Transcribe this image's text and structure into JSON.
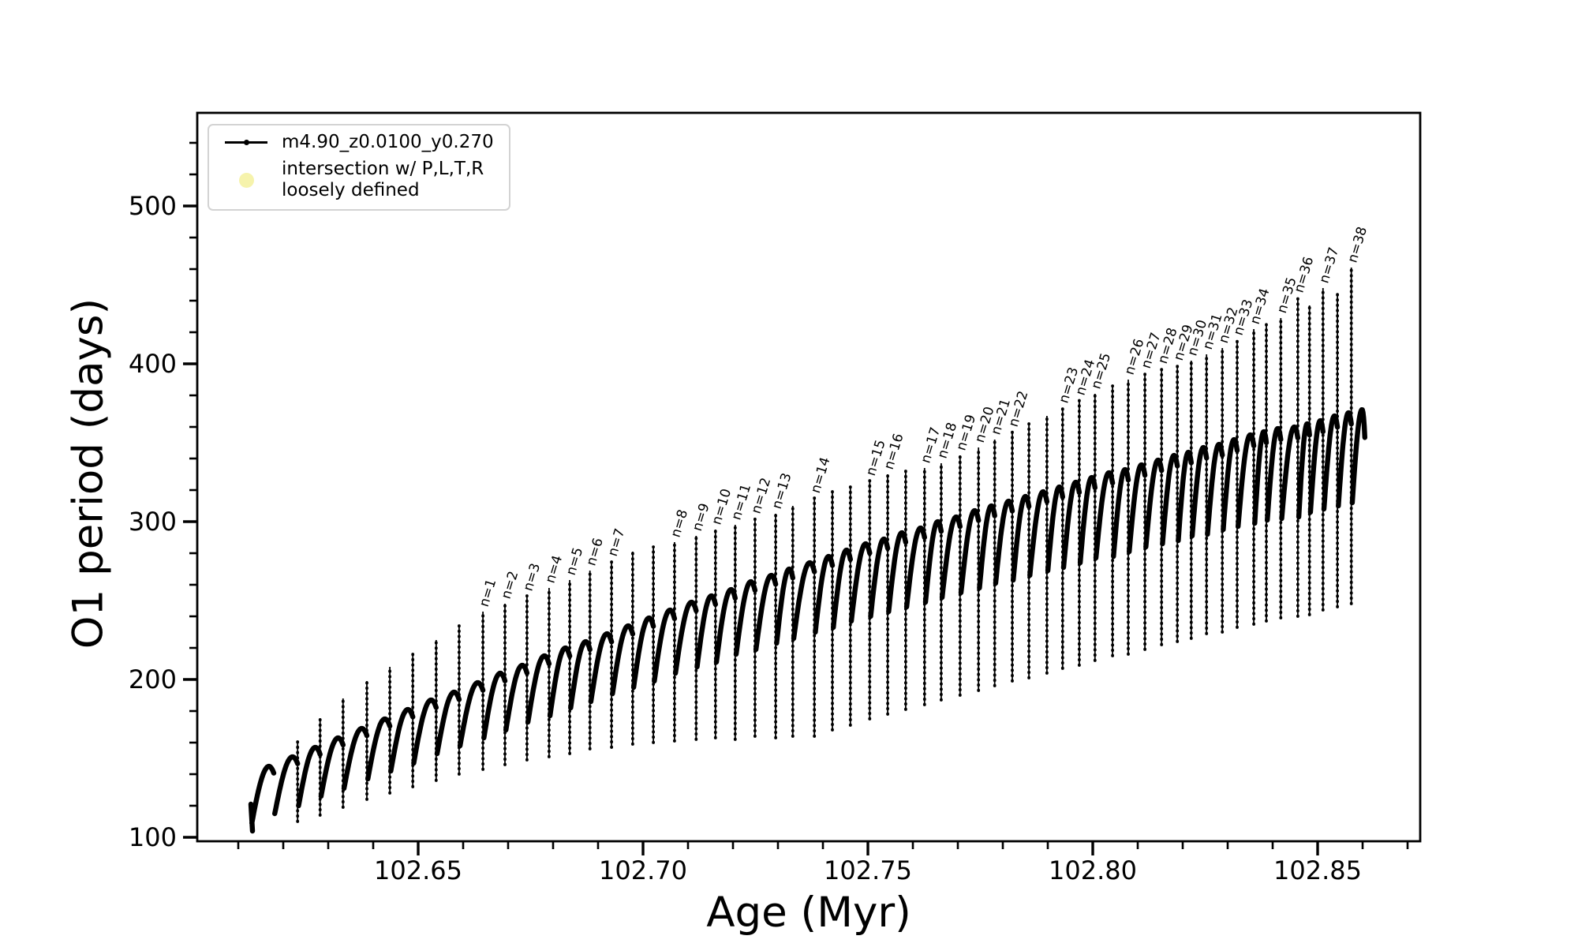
{
  "chart_data": {
    "type": "line",
    "title": "",
    "xlabel": "Age (Myr)",
    "ylabel": "O1 period (days)",
    "xlim": [
      102.601,
      102.873
    ],
    "ylim": [
      97.5,
      559
    ],
    "grid": false,
    "x_major_ticks": [
      102.65,
      102.7,
      102.75,
      102.8,
      102.85
    ],
    "x_major_tick_labels": [
      "102.65",
      "102.70",
      "102.75",
      "102.80",
      "102.85"
    ],
    "x_minor_tick_step": 0.01,
    "y_major_ticks": [
      100,
      200,
      300,
      400,
      500
    ],
    "y_major_tick_labels": [
      "100",
      "200",
      "300",
      "400",
      "500"
    ],
    "y_minor_tick_step": 20,
    "series_color": "#000000",
    "legend": {
      "position": "upper-left",
      "entries": [
        {
          "label": "m4.90_z0.0100_y0.270",
          "marker": "line-with-dot",
          "color": "#000000"
        },
        {
          "label": "intersection w/ P,L,T,R\nloosely defined",
          "marker": "circle",
          "color": "#f6f3ac"
        }
      ]
    },
    "annotation_prefix": "n=",
    "teeth_columns": [
      "age_myr",
      "trough_days",
      "arch_top_days",
      "spike_top_days",
      "spike_bottom_days",
      "label"
    ],
    "teeth": [
      [
        102.6128,
        104,
        139,
        null,
        null,
        null
      ],
      [
        102.6179,
        109,
        145,
        null,
        null,
        null
      ],
      [
        102.6232,
        115,
        151,
        161,
        110,
        null
      ],
      [
        102.6282,
        120,
        157,
        175,
        114,
        null
      ],
      [
        102.6333,
        126,
        163,
        188,
        119,
        null
      ],
      [
        102.6386,
        131,
        169,
        199,
        124,
        null
      ],
      [
        102.6437,
        137,
        175,
        208,
        128,
        null
      ],
      [
        102.6488,
        142,
        181,
        216,
        132,
        null
      ],
      [
        102.654,
        147,
        187,
        225,
        136,
        null
      ],
      [
        102.6591,
        153,
        192,
        234,
        140,
        null
      ],
      [
        102.6644,
        158,
        198,
        243,
        143,
        "n=1"
      ],
      [
        102.6693,
        163,
        204,
        248,
        146,
        "n=2"
      ],
      [
        102.6742,
        168,
        209,
        253,
        149,
        "n=3"
      ],
      [
        102.6791,
        173,
        215,
        258,
        151,
        "n=4"
      ],
      [
        102.6837,
        177,
        220,
        263,
        153,
        "n=5"
      ],
      [
        102.6882,
        182,
        224,
        269,
        156,
        "n=6"
      ],
      [
        102.693,
        186,
        229,
        275,
        157,
        "n=7"
      ],
      [
        102.6977,
        191,
        234,
        281,
        159,
        null
      ],
      [
        102.7023,
        195,
        239,
        284,
        160,
        null
      ],
      [
        102.707,
        199,
        244,
        287,
        161,
        "n=8"
      ],
      [
        102.7118,
        204,
        249,
        291,
        162,
        "n=9"
      ],
      [
        102.7161,
        208,
        253,
        295,
        163,
        "n=10"
      ],
      [
        102.7205,
        211,
        257,
        298,
        162,
        "n=11"
      ],
      [
        102.7249,
        216,
        262,
        302,
        164,
        "n=12"
      ],
      [
        102.7295,
        219,
        266,
        305,
        163,
        "n=13"
      ],
      [
        102.7333,
        223,
        270,
        310,
        164,
        null
      ],
      [
        102.7381,
        226,
        274,
        315,
        164,
        "n=14"
      ],
      [
        102.7421,
        230,
        278,
        319,
        168,
        null
      ],
      [
        102.7461,
        233,
        282,
        322,
        171,
        null
      ],
      [
        102.7504,
        237,
        286,
        326,
        175,
        "n=15"
      ],
      [
        102.7544,
        240,
        289,
        330,
        178,
        "n=16"
      ],
      [
        102.7584,
        243,
        293,
        332,
        181,
        null
      ],
      [
        102.7626,
        246,
        296,
        334,
        184,
        "n=17"
      ],
      [
        102.7663,
        249,
        300,
        337,
        187,
        "n=18"
      ],
      [
        102.7705,
        252,
        303,
        342,
        190,
        "n=19"
      ],
      [
        102.7746,
        255,
        307,
        347,
        193,
        "n=20"
      ],
      [
        102.7782,
        258,
        310,
        352,
        196,
        "n=21"
      ],
      [
        102.7821,
        261,
        313,
        357,
        199,
        "n=22"
      ],
      [
        102.7858,
        263,
        316,
        362,
        201,
        null
      ],
      [
        102.7898,
        266,
        319,
        367,
        204,
        null
      ],
      [
        102.7933,
        269,
        322,
        372,
        207,
        "n=23"
      ],
      [
        102.797,
        271,
        325,
        377,
        209,
        "n=24"
      ],
      [
        102.8005,
        274,
        328,
        381,
        212,
        "n=25"
      ],
      [
        102.8044,
        277,
        331,
        386,
        215,
        null
      ],
      [
        102.8079,
        278,
        333,
        390,
        216,
        "n=26"
      ],
      [
        102.8116,
        281,
        336,
        394,
        219,
        "n=27"
      ],
      [
        102.8153,
        284,
        339,
        397,
        222,
        "n=28"
      ],
      [
        102.8188,
        286,
        342,
        399,
        224,
        "n=29"
      ],
      [
        102.8219,
        288,
        344,
        402,
        226,
        "n=30"
      ],
      [
        102.8253,
        291,
        347,
        406,
        229,
        "n=31"
      ],
      [
        102.8288,
        292,
        349,
        410,
        230,
        "n=32"
      ],
      [
        102.8321,
        295,
        352,
        415,
        233,
        "n=33"
      ],
      [
        102.8358,
        297,
        355,
        422,
        235,
        "n=34"
      ],
      [
        102.8386,
        299,
        357,
        425,
        237,
        null
      ],
      [
        102.8418,
        301,
        359,
        429,
        239,
        "n=35"
      ],
      [
        102.8456,
        302,
        360,
        442,
        240,
        "n=36"
      ],
      [
        102.8482,
        303,
        362,
        437,
        241,
        null
      ],
      [
        102.8512,
        306,
        364,
        448,
        244,
        "n=37"
      ],
      [
        102.8544,
        308,
        367,
        444,
        246,
        null
      ],
      [
        102.8575,
        310,
        369,
        461,
        248,
        "n=38"
      ],
      [
        102.8605,
        312,
        371,
        null,
        null,
        null
      ]
    ]
  }
}
